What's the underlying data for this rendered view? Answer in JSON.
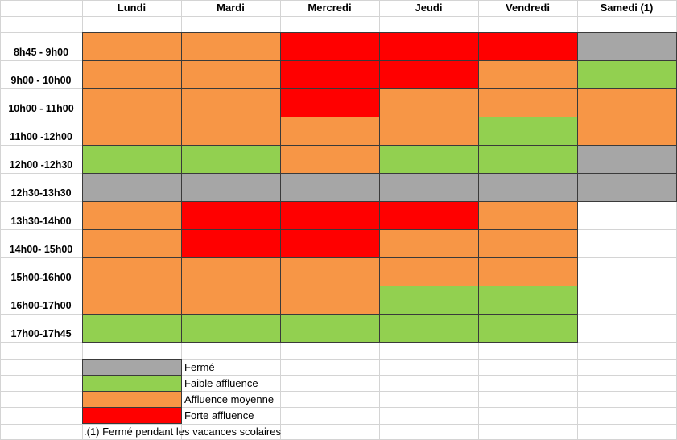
{
  "days": [
    "Lundi",
    "Mardi",
    "Mercredi",
    "Jeudi",
    "Vendredi",
    "Samedi (1)"
  ],
  "time_slots": [
    "8h45 - 9h00",
    "9h00 - 10h00",
    "10h00 - 11h00",
    "11h00 -12h00",
    "12h00 -12h30",
    "12h30-13h30",
    "13h30-14h00",
    "14h00- 15h00",
    "15h00-16h00",
    "16h00-17h00",
    "17h00-17h45"
  ],
  "schedule": [
    [
      "moyenne",
      "moyenne",
      "forte",
      "forte",
      "forte",
      "ferme"
    ],
    [
      "moyenne",
      "moyenne",
      "forte",
      "forte",
      "moyenne",
      "faible"
    ],
    [
      "moyenne",
      "moyenne",
      "forte",
      "moyenne",
      "moyenne",
      "moyenne"
    ],
    [
      "moyenne",
      "moyenne",
      "moyenne",
      "moyenne",
      "faible",
      "moyenne"
    ],
    [
      "faible",
      "faible",
      "moyenne",
      "faible",
      "faible",
      "ferme"
    ],
    [
      "ferme",
      "ferme",
      "ferme",
      "ferme",
      "ferme",
      "ferme"
    ],
    [
      "moyenne",
      "forte",
      "forte",
      "forte",
      "moyenne",
      ""
    ],
    [
      "moyenne",
      "forte",
      "forte",
      "moyenne",
      "moyenne",
      ""
    ],
    [
      "moyenne",
      "moyenne",
      "moyenne",
      "moyenne",
      "moyenne",
      ""
    ],
    [
      "moyenne",
      "moyenne",
      "moyenne",
      "faible",
      "faible",
      ""
    ],
    [
      "faible",
      "faible",
      "faible",
      "faible",
      "faible",
      ""
    ]
  ],
  "colors": {
    "ferme": "#a6a6a6",
    "faible": "#92d050",
    "moyenne": "#f79646",
    "forte": "#ff0000"
  },
  "legend": [
    {
      "key": "ferme",
      "label": "Fermé"
    },
    {
      "key": "faible",
      "label": "Faible affluence"
    },
    {
      "key": "moyenne",
      "label": "Affluence moyenne"
    },
    {
      "key": "forte",
      "label": "Forte affluence"
    }
  ],
  "footnote": ".(1) Fermé pendant les vacances scolaires"
}
